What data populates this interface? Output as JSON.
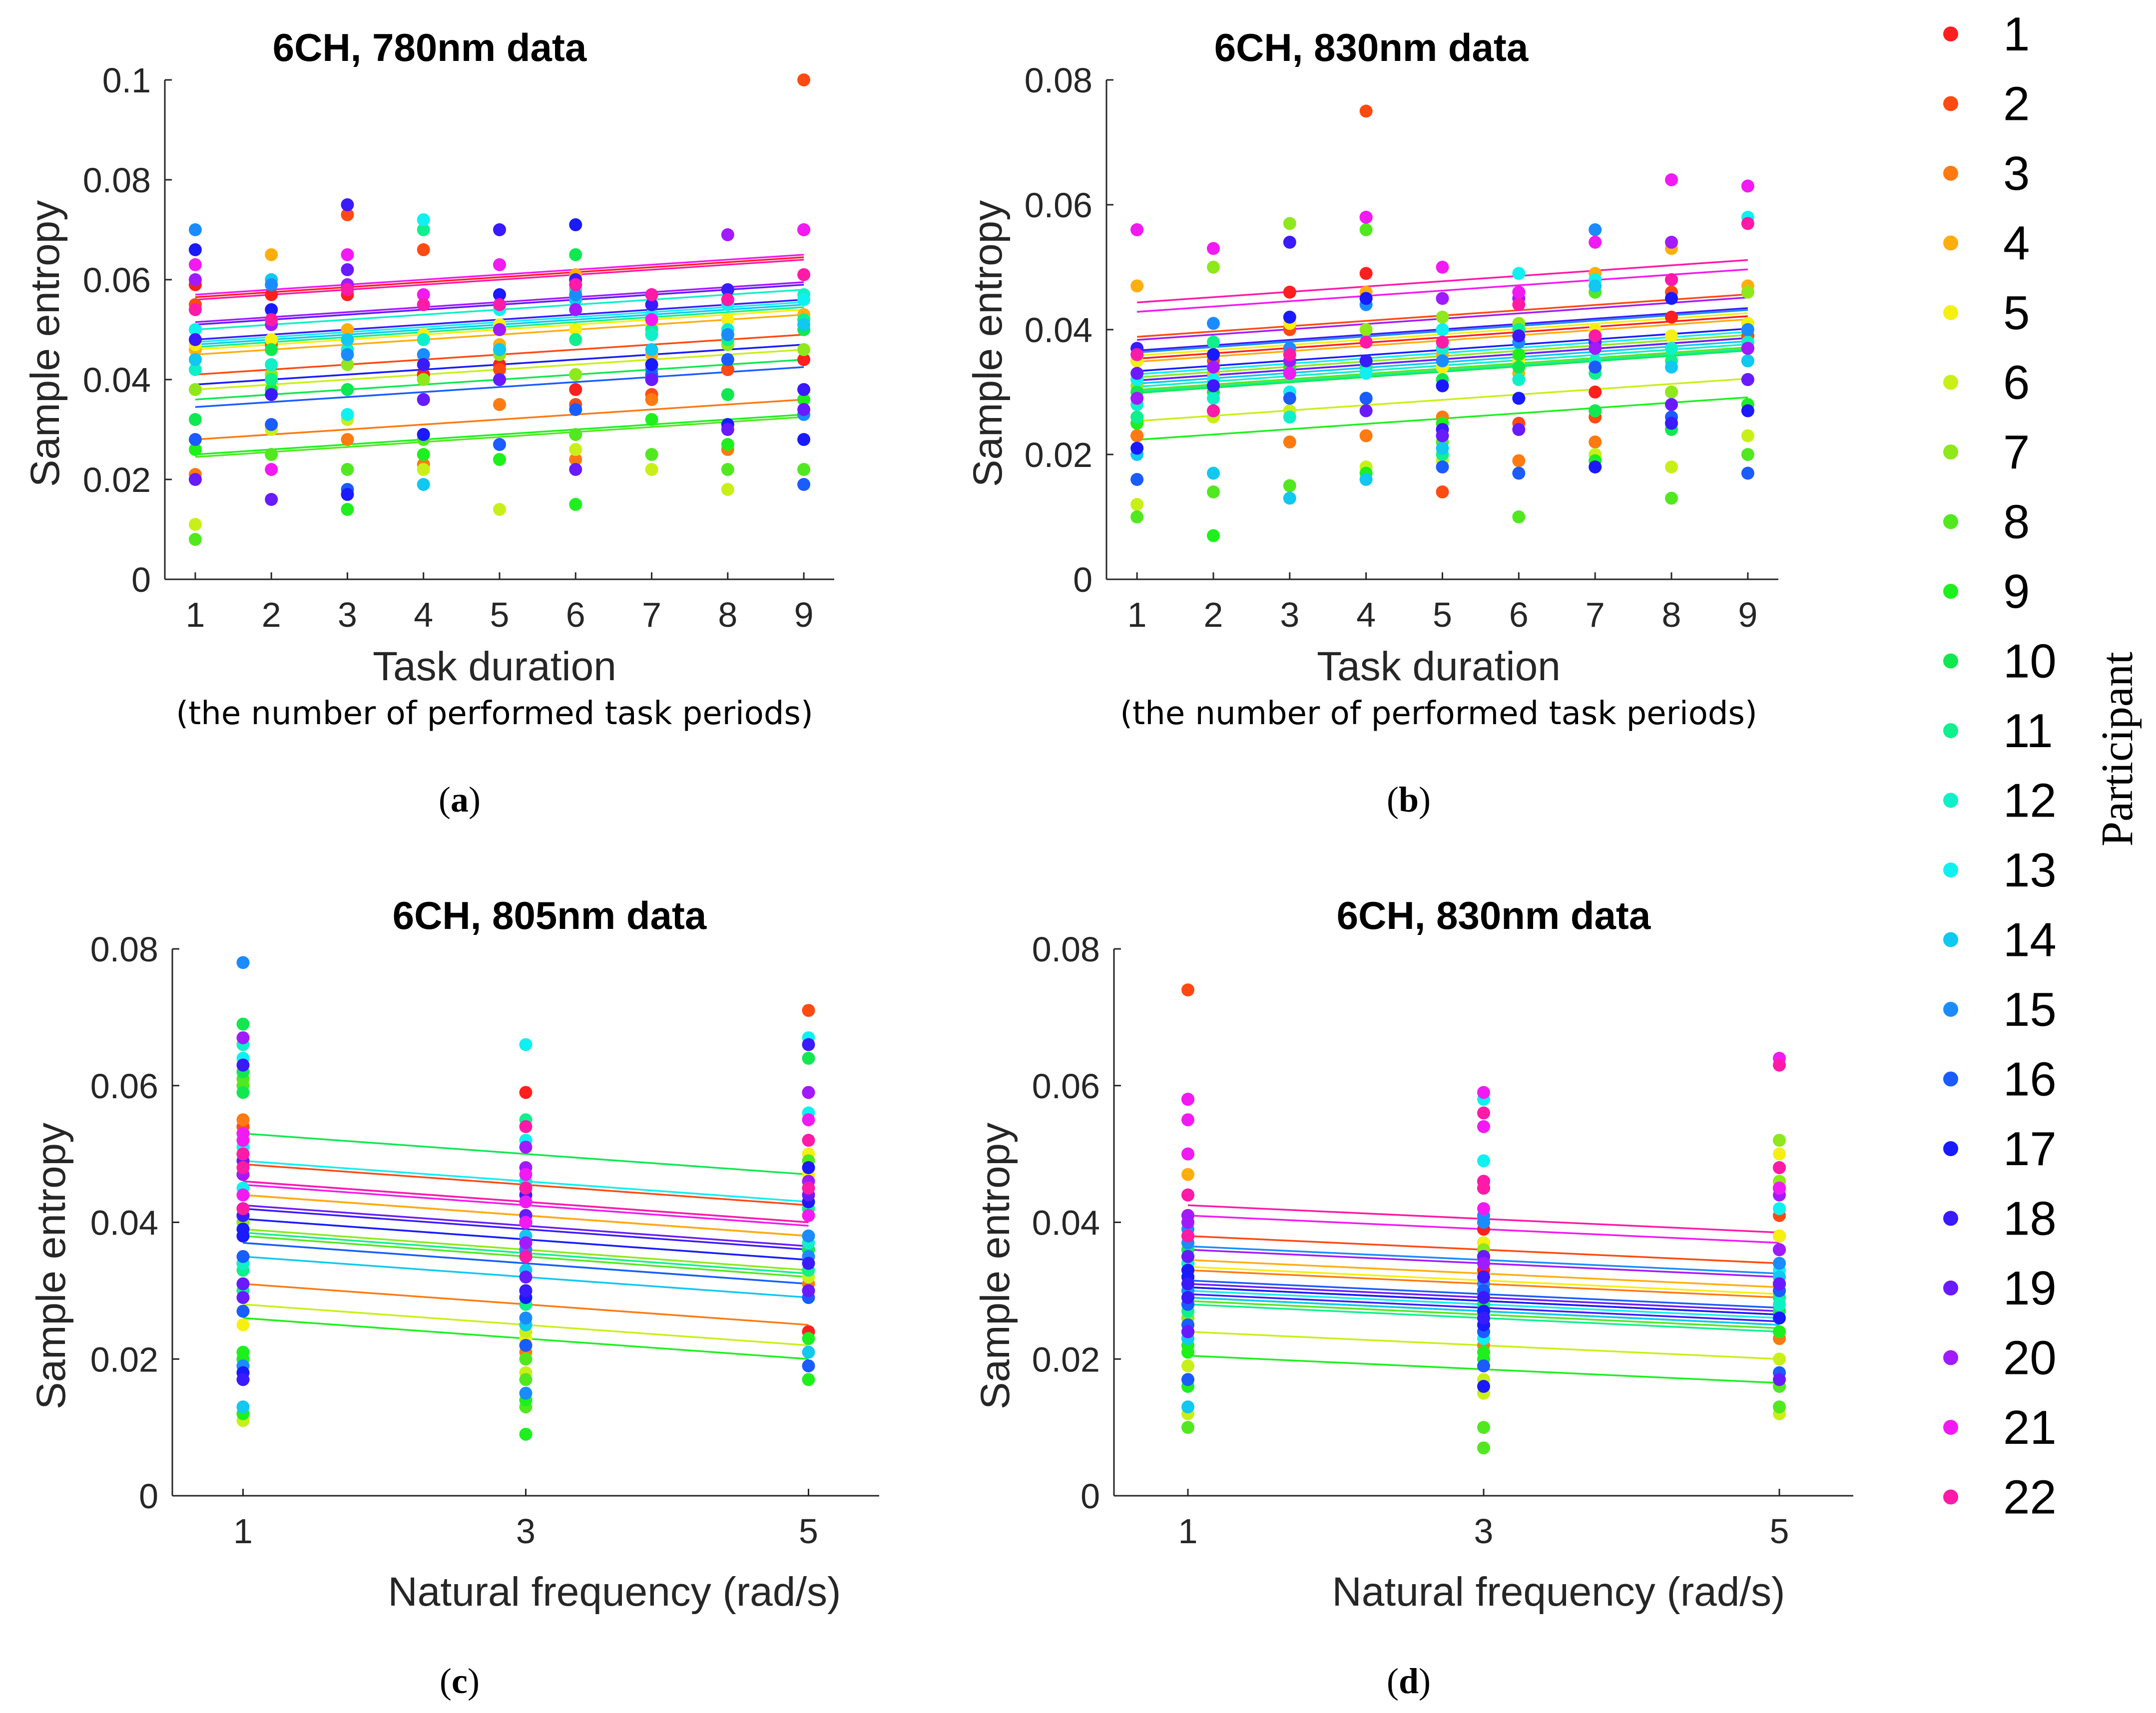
{
  "figure_legend": {
    "title": "Participant",
    "entries": [
      "1",
      "2",
      "3",
      "4",
      "5",
      "6",
      "7",
      "8",
      "9",
      "10",
      "11",
      "12",
      "13",
      "14",
      "15",
      "16",
      "17",
      "18",
      "19",
      "20",
      "21",
      "22"
    ],
    "colors": [
      "#ff1f1f",
      "#ff4a12",
      "#ff7a10",
      "#ffae10",
      "#f5f010",
      "#c8f018",
      "#8ee81c",
      "#52e820",
      "#1ef01e",
      "#10e850",
      "#10f08c",
      "#10f0c8",
      "#10f0f0",
      "#10c8f0",
      "#1a8cff",
      "#1a5cff",
      "#1a1aff",
      "#3a1aff",
      "#6a1aff",
      "#a21aff",
      "#f21af2",
      "#ff1aa8"
    ]
  },
  "chart_data": [
    {
      "type": "scatter",
      "panel_label": "a",
      "title": "6CH, 780nm data",
      "xlabel": "Task duration",
      "xlabel_sub": "(the number of performed task periods)",
      "ylabel": "Sample entropy",
      "xlim": [
        0.6,
        9.4
      ],
      "ylim": [
        0,
        0.1
      ],
      "xticks": [
        1,
        2,
        3,
        4,
        5,
        6,
        7,
        8,
        9
      ],
      "yticks": [
        0,
        0.02,
        0.04,
        0.06,
        0.08,
        0.1
      ],
      "ytick_labels": [
        "0",
        "0.02",
        "0.04",
        "0.06",
        "0.08",
        "0.1"
      ],
      "x": [
        1,
        2,
        3,
        4,
        5,
        6,
        7,
        8,
        9
      ],
      "fit_slope": 0.001,
      "fit_intercepts": [
        0.0555,
        0.04,
        0.027,
        0.044,
        0.045,
        0.037,
        0.038,
        0.0235,
        0.024,
        0.035,
        0.0455,
        0.049,
        0.0465,
        0.046,
        0.05,
        0.0335,
        0.038,
        0.047,
        0.05,
        0.0505,
        0.056,
        0.055
      ],
      "point_values": [
        [
          0.059,
          0.057,
          0.057,
          0.041,
          0.043,
          0.038,
          0.04,
          0.042,
          0.044
        ],
        [
          0.055,
          0.047,
          0.073,
          0.066,
          0.042,
          0.035,
          0.037,
          0.042,
          0.1
        ],
        [
          0.021,
          0.025,
          0.028,
          0.023,
          0.035,
          0.024,
          0.036,
          0.026,
          0.038
        ],
        [
          0.046,
          0.065,
          0.05,
          0.045,
          0.047,
          0.061,
          0.045,
          0.048,
          0.053
        ],
        [
          0.047,
          0.048,
          0.048,
          0.049,
          0.051,
          0.05,
          0.051,
          0.052,
          0.052
        ],
        [
          0.011,
          0.03,
          0.032,
          0.022,
          0.014,
          0.026,
          0.022,
          0.018,
          0.022
        ],
        [
          0.038,
          0.041,
          0.043,
          0.04,
          0.045,
          0.041,
          0.043,
          0.047,
          0.046
        ],
        [
          0.008,
          0.025,
          0.022,
          0.028,
          0.027,
          0.029,
          0.025,
          0.022,
          0.022
        ],
        [
          0.026,
          0.038,
          0.014,
          0.025,
          0.024,
          0.015,
          0.032,
          0.027,
          0.036
        ],
        [
          0.032,
          0.046,
          0.038,
          0.036,
          0.04,
          0.065,
          0.055,
          0.037,
          0.05
        ],
        [
          0.044,
          0.04,
          0.048,
          0.07,
          0.046,
          0.048,
          0.05,
          0.048,
          0.052
        ],
        [
          0.042,
          0.043,
          0.046,
          0.048,
          0.05,
          0.058,
          0.049,
          0.05,
          0.057
        ],
        [
          0.05,
          0.052,
          0.033,
          0.072,
          0.054,
          0.054,
          0.053,
          0.055,
          0.056
        ],
        [
          0.044,
          0.06,
          0.048,
          0.019,
          0.046,
          0.056,
          0.046,
          0.049,
          0.051
        ],
        [
          0.07,
          0.059,
          0.045,
          0.045,
          0.05,
          0.057,
          0.042,
          0.049,
          0.033
        ],
        [
          0.028,
          0.031,
          0.018,
          0.029,
          0.027,
          0.034,
          0.041,
          0.044,
          0.019
        ],
        [
          0.066,
          0.054,
          0.017,
          0.029,
          0.057,
          0.071,
          0.043,
          0.031,
          0.028
        ],
        [
          0.048,
          0.037,
          0.075,
          0.043,
          0.07,
          0.06,
          0.055,
          0.058,
          0.038
        ],
        [
          0.02,
          0.016,
          0.062,
          0.036,
          0.04,
          0.022,
          0.04,
          0.03,
          0.034
        ],
        [
          0.06,
          0.051,
          0.059,
          0.055,
          0.05,
          0.054,
          0.057,
          0.069,
          0.07
        ],
        [
          0.063,
          0.022,
          0.065,
          0.057,
          0.063,
          0.059,
          0.052,
          0.056,
          0.07
        ],
        [
          0.054,
          0.052,
          0.058,
          0.055,
          0.055,
          0.059,
          0.057,
          0.056,
          0.061
        ]
      ]
    },
    {
      "type": "scatter",
      "panel_label": "b",
      "title": "6CH, 830nm data",
      "xlabel": "Task duration",
      "xlabel_sub": "(the number of performed task periods)",
      "ylabel": "Sample entropy",
      "xlim": [
        0.6,
        9.4
      ],
      "ylim": [
        0,
        0.08
      ],
      "xticks": [
        1,
        2,
        3,
        4,
        5,
        6,
        7,
        8,
        9
      ],
      "yticks": [
        0,
        0.02,
        0.04,
        0.06,
        0.08
      ],
      "ytick_labels": [
        "0",
        "0.02",
        "0.04",
        "0.06",
        "0.08"
      ],
      "x": [
        1,
        2,
        3,
        4,
        5,
        6,
        7,
        8,
        9
      ],
      "fit_slope": 0.00085,
      "fit_intercepts": [
        0.0345,
        0.038,
        0.0295,
        0.034,
        0.035,
        0.0245,
        0.0315,
        0.0295,
        0.0215,
        0.029,
        0.0292,
        0.03,
        0.032,
        0.0305,
        0.0355,
        0.031,
        0.0325,
        0.0358,
        0.031,
        0.0375,
        0.042,
        0.0435
      ],
      "point_values": [
        [
          0.035,
          0.036,
          0.046,
          0.049,
          0.037,
          0.035,
          0.03,
          0.042,
          0.039
        ],
        [
          0.023,
          0.035,
          0.04,
          0.075,
          0.014,
          0.025,
          0.026,
          0.046,
          0.039
        ],
        [
          0.023,
          0.036,
          0.022,
          0.023,
          0.026,
          0.019,
          0.022,
          0.03,
          0.032
        ],
        [
          0.047,
          0.033,
          0.041,
          0.046,
          0.036,
          0.033,
          0.049,
          0.053,
          0.047
        ],
        [
          0.035,
          0.034,
          0.041,
          0.04,
          0.034,
          0.035,
          0.04,
          0.039,
          0.041
        ],
        [
          0.012,
          0.026,
          0.027,
          0.018,
          0.019,
          0.024,
          0.02,
          0.018,
          0.023
        ],
        [
          0.031,
          0.05,
          0.057,
          0.04,
          0.042,
          0.041,
          0.046,
          0.03,
          0.046
        ],
        [
          0.01,
          0.014,
          0.015,
          0.056,
          0.022,
          0.01,
          0.046,
          0.013,
          0.02
        ],
        [
          0.025,
          0.007,
          0.034,
          0.017,
          0.025,
          0.036,
          0.019,
          0.025,
          0.028
        ],
        [
          0.03,
          0.03,
          0.03,
          0.029,
          0.032,
          0.034,
          0.027,
          0.024,
          0.035
        ],
        [
          0.026,
          0.038,
          0.037,
          0.034,
          0.02,
          0.04,
          0.033,
          0.035,
          0.04
        ],
        [
          0.028,
          0.029,
          0.026,
          0.035,
          0.037,
          0.032,
          0.035,
          0.037,
          0.038
        ],
        [
          0.032,
          0.032,
          0.03,
          0.033,
          0.04,
          0.049,
          0.048,
          0.048,
          0.058
        ],
        [
          0.02,
          0.017,
          0.013,
          0.016,
          0.021,
          0.029,
          0.047,
          0.034,
          0.035
        ],
        [
          0.056,
          0.041,
          0.037,
          0.044,
          0.035,
          0.038,
          0.056,
          0.048,
          0.04
        ],
        [
          0.016,
          0.031,
          0.029,
          0.029,
          0.018,
          0.017,
          0.034,
          0.026,
          0.017
        ],
        [
          0.021,
          0.036,
          0.042,
          0.045,
          0.031,
          0.029,
          0.018,
          0.045,
          0.027
        ],
        [
          0.037,
          0.031,
          0.054,
          0.035,
          0.024,
          0.039,
          0.038,
          0.025,
          0.037
        ],
        [
          0.033,
          0.027,
          0.033,
          0.027,
          0.023,
          0.024,
          0.038,
          0.028,
          0.032
        ],
        [
          0.029,
          0.034,
          0.035,
          0.058,
          0.045,
          0.045,
          0.037,
          0.054,
          0.037
        ],
        [
          0.056,
          0.053,
          0.033,
          0.058,
          0.05,
          0.046,
          0.054,
          0.064,
          0.063
        ],
        [
          0.036,
          0.027,
          0.036,
          0.038,
          0.038,
          0.044,
          0.039,
          0.048,
          0.057
        ]
      ]
    },
    {
      "type": "scatter",
      "panel_label": "c",
      "title": "6CH, 805nm data",
      "xlabel": "Natural frequency (rad/s)",
      "ylabel": "Sample entropy",
      "xlim": [
        0.5,
        5.5
      ],
      "ylim": [
        0,
        0.08
      ],
      "xticks": [
        1,
        3,
        5
      ],
      "yticks": [
        0,
        0.02,
        0.04,
        0.06,
        0.08
      ],
      "ytick_labels": [
        "0",
        "0.02",
        "0.04",
        "0.06",
        "0.08"
      ],
      "x": [
        1,
        3,
        5
      ],
      "fit_slope": -0.0015,
      "fit_intercepts": [
        0.0455,
        0.05,
        0.0325,
        0.0455,
        0.044,
        0.0295,
        0.0405,
        0.0395,
        0.0275,
        0.0545,
        0.04,
        0.0385,
        0.0505,
        0.0365,
        0.042,
        0.0385,
        0.042,
        0.0435,
        0.044,
        0.0475,
        0.047,
        0.0475
      ],
      "point_values": [
        [
          0.019,
          0.035,
          0.024,
          0.02,
          0.041,
          0.036,
          0.05,
          0.059
        ],
        [
          0.04,
          0.036,
          0.071,
          0.054,
          0.04,
          0.059,
          0.047,
          0.038
        ],
        [
          0.034,
          0.026,
          0.048,
          0.055,
          0.038,
          0.031,
          0.038,
          0.021
        ],
        [
          0.06,
          0.029,
          0.043,
          0.053,
          0.041,
          0.045,
          0.038,
          0.028
        ],
        [
          0.02,
          0.023,
          0.047,
          0.025,
          0.04,
          0.05,
          0.034,
          0.026
        ],
        [
          0.011,
          0.018,
          0.035,
          0.012,
          0.02,
          0.032,
          0.034,
          0.024
        ],
        [
          0.04,
          0.025,
          0.043,
          0.053,
          0.03,
          0.035,
          0.04,
          0.029
        ],
        [
          0.052,
          0.017,
          0.036,
          0.06,
          0.02,
          0.049,
          0.061,
          0.013
        ],
        [
          0.012,
          0.03,
          0.017,
          0.021,
          0.009,
          0.023,
          0.02,
          0.014
        ],
        [
          0.069,
          0.046,
          0.064,
          0.059,
          0.046,
          0.036,
          0.062,
          0.04
        ],
        [
          0.033,
          0.043,
          0.042,
          0.034,
          0.028,
          0.033,
          0.03,
          0.055
        ],
        [
          0.031,
          0.045,
          0.037,
          0.066,
          0.04,
          0.045,
          0.034,
          0.046
        ],
        [
          0.064,
          0.052,
          0.067,
          0.051,
          0.066,
          0.056,
          0.045,
          0.052
        ],
        [
          0.013,
          0.038,
          0.021,
          0.031,
          0.033,
          0.038,
          0.042,
          0.025
        ],
        [
          0.078,
          0.026,
          0.035,
          0.041,
          0.015,
          0.038,
          0.019,
          0.036
        ],
        [
          0.047,
          0.045,
          0.029,
          0.027,
          0.022,
          0.019,
          0.035,
          0.041
        ],
        [
          0.038,
          0.04,
          0.048,
          0.039,
          0.029,
          0.043,
          0.018,
          0.035
        ],
        [
          0.041,
          0.03,
          0.066,
          0.063,
          0.044,
          0.034,
          0.017,
          0.04
        ],
        [
          0.049,
          0.032,
          0.044,
          0.031,
          0.037,
          0.03,
          0.029,
          0.041
        ],
        [
          0.067,
          0.048,
          0.059,
          0.047,
          0.051,
          0.046,
          0.042,
          0.037
        ],
        [
          0.044,
          0.043,
          0.055,
          0.053,
          0.047,
          0.041,
          0.052,
          0.04
        ],
        [
          0.042,
          0.045,
          0.052,
          0.05,
          0.054,
          0.045,
          0.048,
          0.035
        ]
      ]
    },
    {
      "type": "scatter",
      "panel_label": "d",
      "title": "6CH, 830nm data",
      "xlabel": "Natural frequency (rad/s)",
      "ylabel": "Sample entropy",
      "xlim": [
        0.5,
        5.5
      ],
      "ylim": [
        0,
        0.08
      ],
      "xticks": [
        1,
        3,
        5
      ],
      "yticks": [
        0,
        0.02,
        0.04,
        0.06,
        0.08
      ],
      "ytick_labels": [
        "0",
        "0.02",
        "0.04",
        "0.06",
        "0.08"
      ],
      "x": [
        1,
        3,
        5
      ],
      "fit_slope": -0.001,
      "fit_intercepts": [
        0.0315,
        0.039,
        0.034,
        0.0355,
        0.0345,
        0.025,
        0.03,
        0.0295,
        0.0215,
        0.03,
        0.029,
        0.03,
        0.031,
        0.03,
        0.0375,
        0.0325,
        0.0315,
        0.0305,
        0.032,
        0.037,
        0.042,
        0.0435
      ],
      "point_values": [
        [
          0.041,
          0.033,
          0.029,
          0.028,
          0.04,
          0.03,
          0.028,
          0.039
        ],
        [
          0.074,
          0.036,
          0.038,
          0.034,
          0.03,
          0.041,
          0.032,
          0.037
        ],
        [
          0.026,
          0.025,
          0.031,
          0.029,
          0.027,
          0.023,
          0.028,
          0.022
        ],
        [
          0.047,
          0.029,
          0.034,
          0.041,
          0.029,
          0.031,
          0.033,
          0.026
        ],
        [
          0.031,
          0.037,
          0.05,
          0.032,
          0.029,
          0.038,
          0.03,
          0.036
        ],
        [
          0.012,
          0.024,
          0.012,
          0.022,
          0.017,
          0.02,
          0.019,
          0.015
        ],
        [
          0.05,
          0.03,
          0.052,
          0.037,
          0.026,
          0.046,
          0.026,
          0.036
        ],
        [
          0.01,
          0.02,
          0.013,
          0.025,
          0.007,
          0.016,
          0.017,
          0.01
        ],
        [
          0.022,
          0.02,
          0.024,
          0.016,
          0.021,
          0.027,
          0.021,
          0.024
        ],
        [
          0.034,
          0.027,
          0.027,
          0.036,
          0.027,
          0.032,
          0.036,
          0.028
        ],
        [
          0.023,
          0.03,
          0.036,
          0.027,
          0.03,
          0.029,
          0.035,
          0.026
        ],
        [
          0.029,
          0.035,
          0.045,
          0.032,
          0.035,
          0.028,
          0.034,
          0.03
        ],
        [
          0.032,
          0.058,
          0.042,
          0.03,
          0.049,
          0.033,
          0.04,
          0.023
        ],
        [
          0.013,
          0.034,
          0.032,
          0.028,
          0.025,
          0.036,
          0.023,
          0.027
        ],
        [
          0.039,
          0.04,
          0.048,
          0.03,
          0.041,
          0.034,
          0.037,
          0.031
        ],
        [
          0.017,
          0.03,
          0.03,
          0.025,
          0.019,
          0.018,
          0.028,
          0.024
        ],
        [
          0.024,
          0.027,
          0.045,
          0.032,
          0.016,
          0.026,
          0.033,
          0.025
        ],
        [
          0.031,
          0.032,
          0.036,
          0.029,
          0.026,
          0.031,
          0.035,
          0.029
        ],
        [
          0.038,
          0.035,
          0.017,
          0.035,
          0.045,
          0.031,
          0.024,
          0.035
        ],
        [
          0.058,
          0.046,
          0.036,
          0.041,
          0.046,
          0.044,
          0.04,
          0.034
        ],
        [
          0.055,
          0.054,
          0.064,
          0.05,
          0.059,
          0.045,
          0.058,
          0.042
        ],
        [
          0.044,
          0.046,
          0.063,
          0.038,
          0.056,
          0.048,
          0.044,
          0.045
        ]
      ]
    }
  ]
}
